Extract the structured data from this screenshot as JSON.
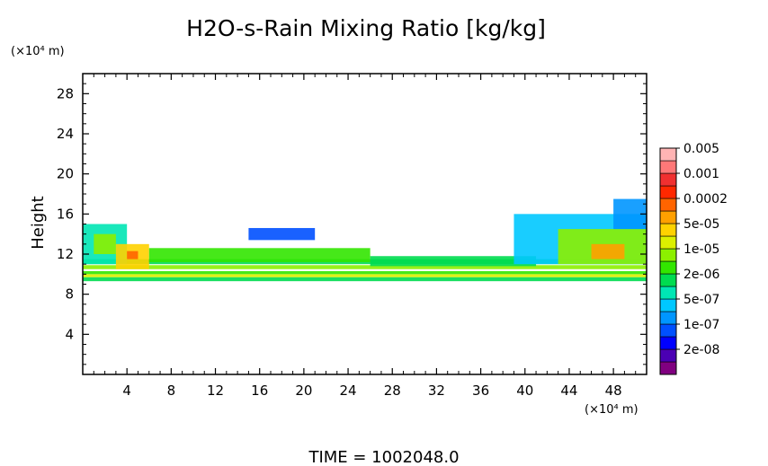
{
  "chart_data": {
    "type": "heatmap",
    "title": "H2O-s-Rain Mixing Ratio [kg/kg]",
    "ylabel": "Height",
    "y_unit": "(×10⁴ m)",
    "x_unit": "(×10⁴ m)",
    "xlim": [
      0,
      51
    ],
    "ylim": [
      0,
      30
    ],
    "x_ticks": [
      "4",
      "8",
      "12",
      "16",
      "20",
      "24",
      "28",
      "32",
      "36",
      "40",
      "44",
      "48"
    ],
    "y_ticks": [
      "4",
      "8",
      "12",
      "16",
      "20",
      "24",
      "28"
    ],
    "footer": "TIME = 1002048.0",
    "legend": {
      "placement": "right",
      "labels": [
        "0.005",
        "0.001",
        "0.0002",
        "5e-05",
        "1e-05",
        "2e-06",
        "5e-07",
        "1e-07",
        "2e-08"
      ],
      "colors": [
        "#800080",
        "#4b00b4",
        "#0000ff",
        "#0050ff",
        "#0096ff",
        "#00c8ff",
        "#00e6b4",
        "#00dc50",
        "#32e600",
        "#8cf000",
        "#dcf000",
        "#ffd200",
        "#ffa000",
        "#ff6400",
        "#ff2800",
        "#f03030",
        "#ff7878",
        "#ffb4b4"
      ]
    },
    "regions": [
      {
        "x": [
          0,
          51
        ],
        "y": [
          9.3,
          9.7
        ],
        "level": 7
      },
      {
        "x": [
          0,
          51
        ],
        "y": [
          9.7,
          10.0
        ],
        "level": 10
      },
      {
        "x": [
          0,
          51
        ],
        "y": [
          10.0,
          10.3
        ],
        "level": 8
      },
      {
        "x": [
          0,
          51
        ],
        "y": [
          10.5,
          10.9
        ],
        "level": 9
      },
      {
        "x": [
          0,
          51
        ],
        "y": [
          11.0,
          11.5
        ],
        "level": 7
      },
      {
        "x": [
          0,
          4
        ],
        "y": [
          11,
          15
        ],
        "level": 6
      },
      {
        "x": [
          1,
          3
        ],
        "y": [
          12,
          14
        ],
        "level": 9
      },
      {
        "x": [
          3,
          6
        ],
        "y": [
          10.5,
          13
        ],
        "level": 11
      },
      {
        "x": [
          4,
          5
        ],
        "y": [
          11.5,
          12.3
        ],
        "level": 13
      },
      {
        "x": [
          15,
          21
        ],
        "y": [
          13.4,
          14.6
        ],
        "level": 3
      },
      {
        "x": [
          6,
          26
        ],
        "y": [
          11.2,
          12.6
        ],
        "level": 8
      },
      {
        "x": [
          26,
          41
        ],
        "y": [
          10.8,
          11.8
        ],
        "level": 7
      },
      {
        "x": [
          39,
          51
        ],
        "y": [
          11,
          16
        ],
        "level": 5
      },
      {
        "x": [
          43,
          51
        ],
        "y": [
          11,
          14.5
        ],
        "level": 9
      },
      {
        "x": [
          46,
          49
        ],
        "y": [
          11.5,
          13
        ],
        "level": 12
      },
      {
        "x": [
          48,
          51
        ],
        "y": [
          14.5,
          17.5
        ],
        "level": 4
      }
    ]
  }
}
